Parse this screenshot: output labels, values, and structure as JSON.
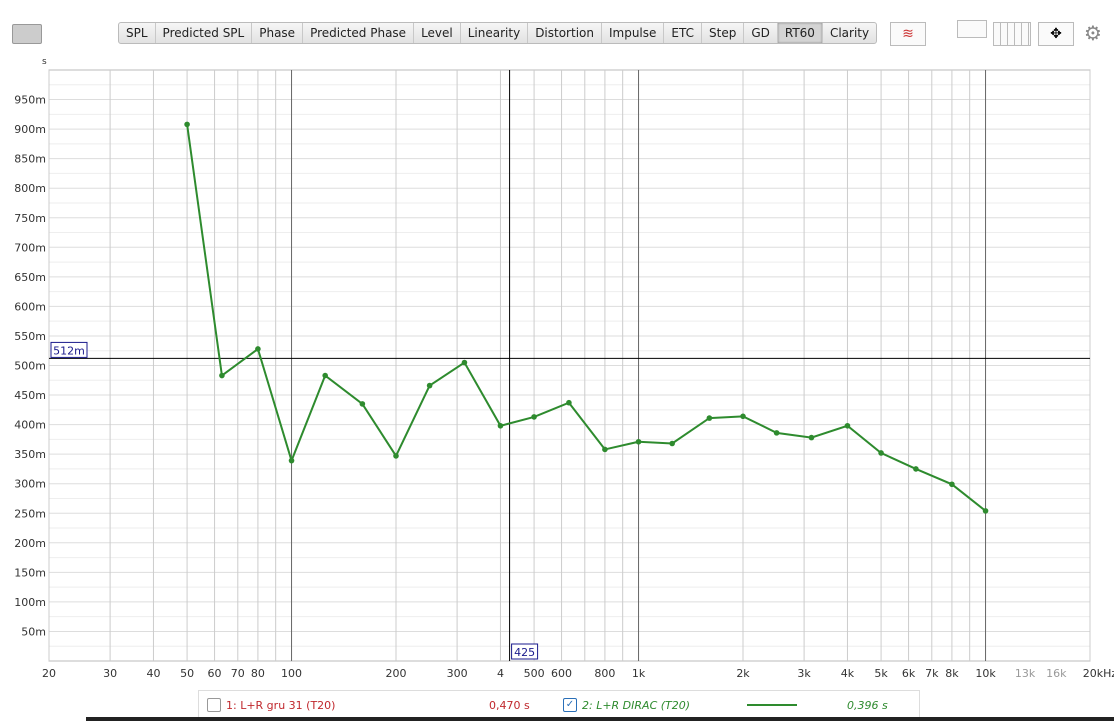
{
  "tabs": [
    "SPL",
    "Predicted SPL",
    "Phase",
    "Predicted Phase",
    "Level",
    "Linearity",
    "Distortion",
    "Impulse",
    "ETC",
    "Step",
    "GD",
    "RT60",
    "Clarity"
  ],
  "active_tab": "RT60",
  "icons": [
    "camera-icon",
    "trace-arrange-icon",
    "single-pane-icon",
    "multi-pane-icon",
    "pan-arrows-icon",
    "gear-icon"
  ],
  "chart_data": {
    "type": "line",
    "ylabel": "s",
    "xscale": "log",
    "xlim": [
      20,
      20000
    ],
    "ylim": [
      0,
      1000
    ],
    "x_ticks": [
      "20",
      "30",
      "40",
      "50",
      "60",
      "70",
      "80",
      "100",
      "200",
      "300",
      "4",
      "500",
      "600",
      "800",
      "1k",
      "2k",
      "3k",
      "4k",
      "5k",
      "6k",
      "7k",
      "8k",
      "10k",
      "13k",
      "16k",
      "20kHz"
    ],
    "y_ticks": [
      "50m",
      "100m",
      "150m",
      "200m",
      "250m",
      "300m",
      "350m",
      "400m",
      "450m",
      "500m",
      "550m",
      "600m",
      "650m",
      "700m",
      "750m",
      "800m",
      "850m",
      "900m",
      "950m"
    ],
    "grid": true,
    "cursor": {
      "x_label": "425",
      "y_label": "512m",
      "x": 425,
      "y": 512
    },
    "series": [
      {
        "name": "2: L+R DIRAC (T20)",
        "color": "#2e8b2e",
        "x": [
          50,
          63,
          80,
          100,
          125,
          160,
          200,
          250,
          315,
          400,
          500,
          630,
          800,
          1000,
          1250,
          1600,
          2000,
          2500,
          3150,
          4000,
          5000,
          6300,
          8000,
          10000
        ],
        "y": [
          908,
          483,
          528,
          339,
          483,
          435,
          347,
          466,
          505,
          398,
          413,
          437,
          358,
          371,
          368,
          411,
          414,
          386,
          378,
          398,
          352,
          325,
          299,
          254
        ]
      }
    ]
  },
  "legend": [
    {
      "label": "1: L+R gru 31 (T20)",
      "value": "0,470 s",
      "checked": false,
      "color": "#c0282d"
    },
    {
      "label": "2: L+R DIRAC (T20)",
      "value": "0,396 s",
      "checked": true,
      "color": "#2e8b2e"
    }
  ]
}
